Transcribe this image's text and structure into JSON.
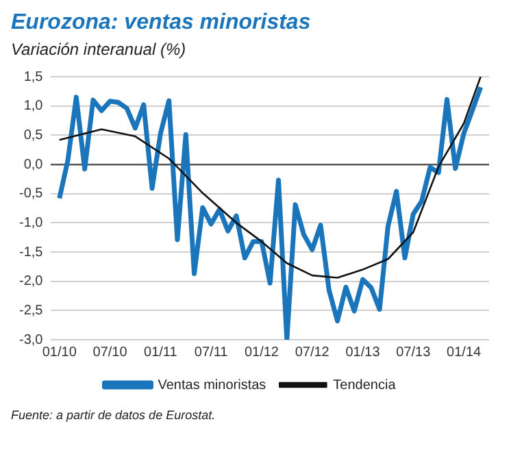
{
  "chart_data": {
    "type": "line",
    "title": "Eurozona: ventas minoristas",
    "subtitle": "Variación interanual (%)",
    "x": [
      "2010-01",
      "2010-02",
      "2010-03",
      "2010-04",
      "2010-05",
      "2010-06",
      "2010-07",
      "2010-08",
      "2010-09",
      "2010-10",
      "2010-11",
      "2010-12",
      "2011-01",
      "2011-02",
      "2011-03",
      "2011-04",
      "2011-05",
      "2011-06",
      "2011-07",
      "2011-08",
      "2011-09",
      "2011-10",
      "2011-11",
      "2011-12",
      "2012-01",
      "2012-02",
      "2012-03",
      "2012-04",
      "2012-05",
      "2012-06",
      "2012-07",
      "2012-08",
      "2012-09",
      "2012-10",
      "2012-11",
      "2012-12",
      "2013-01",
      "2013-02",
      "2013-03",
      "2013-04",
      "2013-05",
      "2013-06",
      "2013-07",
      "2013-08",
      "2013-09",
      "2013-10",
      "2013-11",
      "2013-12",
      "2014-01",
      "2014-02",
      "2014-03"
    ],
    "series": [
      {
        "name": "Ventas minoristas",
        "color": "#1a75bb",
        "values": [
          -0.58,
          0.07,
          1.15,
          -0.08,
          1.1,
          0.92,
          1.08,
          1.06,
          0.96,
          0.62,
          1.02,
          -0.41,
          0.53,
          1.09,
          -1.29,
          0.51,
          -1.87,
          -0.74,
          -1.02,
          -0.77,
          -1.14,
          -0.88,
          -1.6,
          -1.32,
          -1.32,
          -2.03,
          -0.27,
          -3.0,
          -0.69,
          -1.2,
          -1.46,
          -1.04,
          -2.15,
          -2.68,
          -2.1,
          -2.51,
          -1.97,
          -2.11,
          -2.48,
          -1.06,
          -0.46,
          -1.6,
          -0.85,
          -0.63,
          -0.05,
          -0.14,
          1.11,
          -0.07,
          0.53,
          0.92,
          1.32
        ]
      },
      {
        "name": "Tendencia",
        "color": "#111111",
        "x": [
          "2010-01",
          "2010-06",
          "2010-10",
          "2011-02",
          "2011-06",
          "2011-10",
          "2012-01",
          "2012-04",
          "2012-07",
          "2012-10",
          "2013-01",
          "2013-04",
          "2013-07",
          "2013-10",
          "2014-01",
          "2014-03"
        ],
        "values": [
          0.42,
          0.6,
          0.48,
          0.1,
          -0.49,
          -1.0,
          -1.32,
          -1.69,
          -1.9,
          -1.94,
          -1.8,
          -1.62,
          -1.16,
          -0.04,
          0.7,
          1.5
        ]
      }
    ],
    "xlim": [
      "2009-12",
      "2014-04"
    ],
    "xticks": [
      {
        "value": "2010-01",
        "label": "01/10"
      },
      {
        "value": "2010-07",
        "label": "07/10"
      },
      {
        "value": "2011-01",
        "label": "01/11"
      },
      {
        "value": "2011-07",
        "label": "07/11"
      },
      {
        "value": "2012-01",
        "label": "01/12"
      },
      {
        "value": "2012-07",
        "label": "07/12"
      },
      {
        "value": "2013-01",
        "label": "01/13"
      },
      {
        "value": "2013-07",
        "label": "07/13"
      },
      {
        "value": "2014-01",
        "label": "01/14"
      }
    ],
    "ylim": [
      -3.0,
      1.5
    ],
    "yticks": [
      {
        "value": -3,
        "label": "-3,0"
      },
      {
        "value": -2.5,
        "label": "-2,5"
      },
      {
        "value": -2,
        "label": "-2,0"
      },
      {
        "value": -1.5,
        "label": "-1,5"
      },
      {
        "value": -1,
        "label": "-1,0"
      },
      {
        "value": -0.5,
        "label": "-0,5"
      },
      {
        "value": 0,
        "label": "0,0"
      },
      {
        "value": 0.5,
        "label": "0,5"
      },
      {
        "value": 1,
        "label": "1,0"
      },
      {
        "value": 1.5,
        "label": "1,5"
      }
    ],
    "grid": "y",
    "legend": "bottom",
    "marker": "none",
    "line_style": "solid",
    "annotations": [
      "Fuente: a partir de datos de Eurostat."
    ]
  }
}
